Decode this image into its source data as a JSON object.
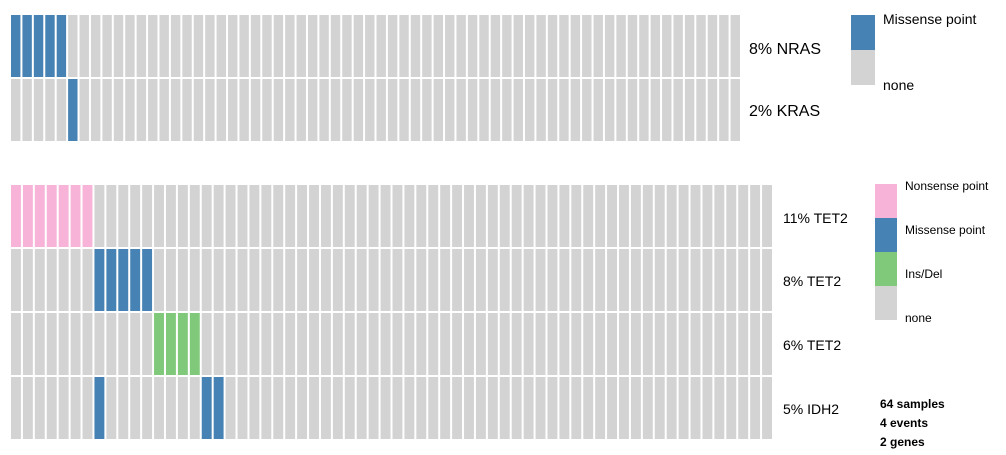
{
  "colors": {
    "none": "#d3d3d3",
    "missense": "#4682b4",
    "nonsense": "#f7b4d8",
    "insdel": "#80c97b"
  },
  "chart_data": [
    {
      "type": "heatmap",
      "samples": 64,
      "rows": [
        {
          "label": "8% NRAS",
          "events": [
            {
              "cols": [
                0,
                1,
                2,
                3,
                4
              ],
              "type": "missense"
            }
          ]
        },
        {
          "label": "2% KRAS",
          "events": [
            {
              "cols": [
                5
              ],
              "type": "missense"
            }
          ]
        }
      ],
      "legend": [
        {
          "label": "Missense point",
          "color_key": "missense"
        },
        {
          "label": "none",
          "color_key": "none"
        }
      ]
    },
    {
      "type": "heatmap",
      "samples": 64,
      "rows": [
        {
          "label": "11% TET2",
          "events": [
            {
              "cols": [
                0,
                1,
                2,
                3,
                4,
                5,
                6
              ],
              "type": "nonsense"
            }
          ]
        },
        {
          "label": "8% TET2",
          "events": [
            {
              "cols": [
                7,
                8,
                9,
                10,
                11
              ],
              "type": "missense"
            }
          ]
        },
        {
          "label": "6% TET2",
          "events": [
            {
              "cols": [
                12,
                13,
                14,
                15
              ],
              "type": "insdel"
            }
          ]
        },
        {
          "label": "5% IDH2",
          "events": [
            {
              "cols": [
                7
              ],
              "type": "missense"
            },
            {
              "cols": [
                16,
                17
              ],
              "type": "missense"
            }
          ]
        }
      ],
      "legend": [
        {
          "label": "Nonsense point",
          "color_key": "nonsense"
        },
        {
          "label": "Missense point",
          "color_key": "missense"
        },
        {
          "label": "Ins/Del",
          "color_key": "insdel"
        },
        {
          "label": "none",
          "color_key": "none"
        }
      ],
      "summary": [
        "64 samples",
        "4 events",
        "2 genes"
      ]
    }
  ]
}
